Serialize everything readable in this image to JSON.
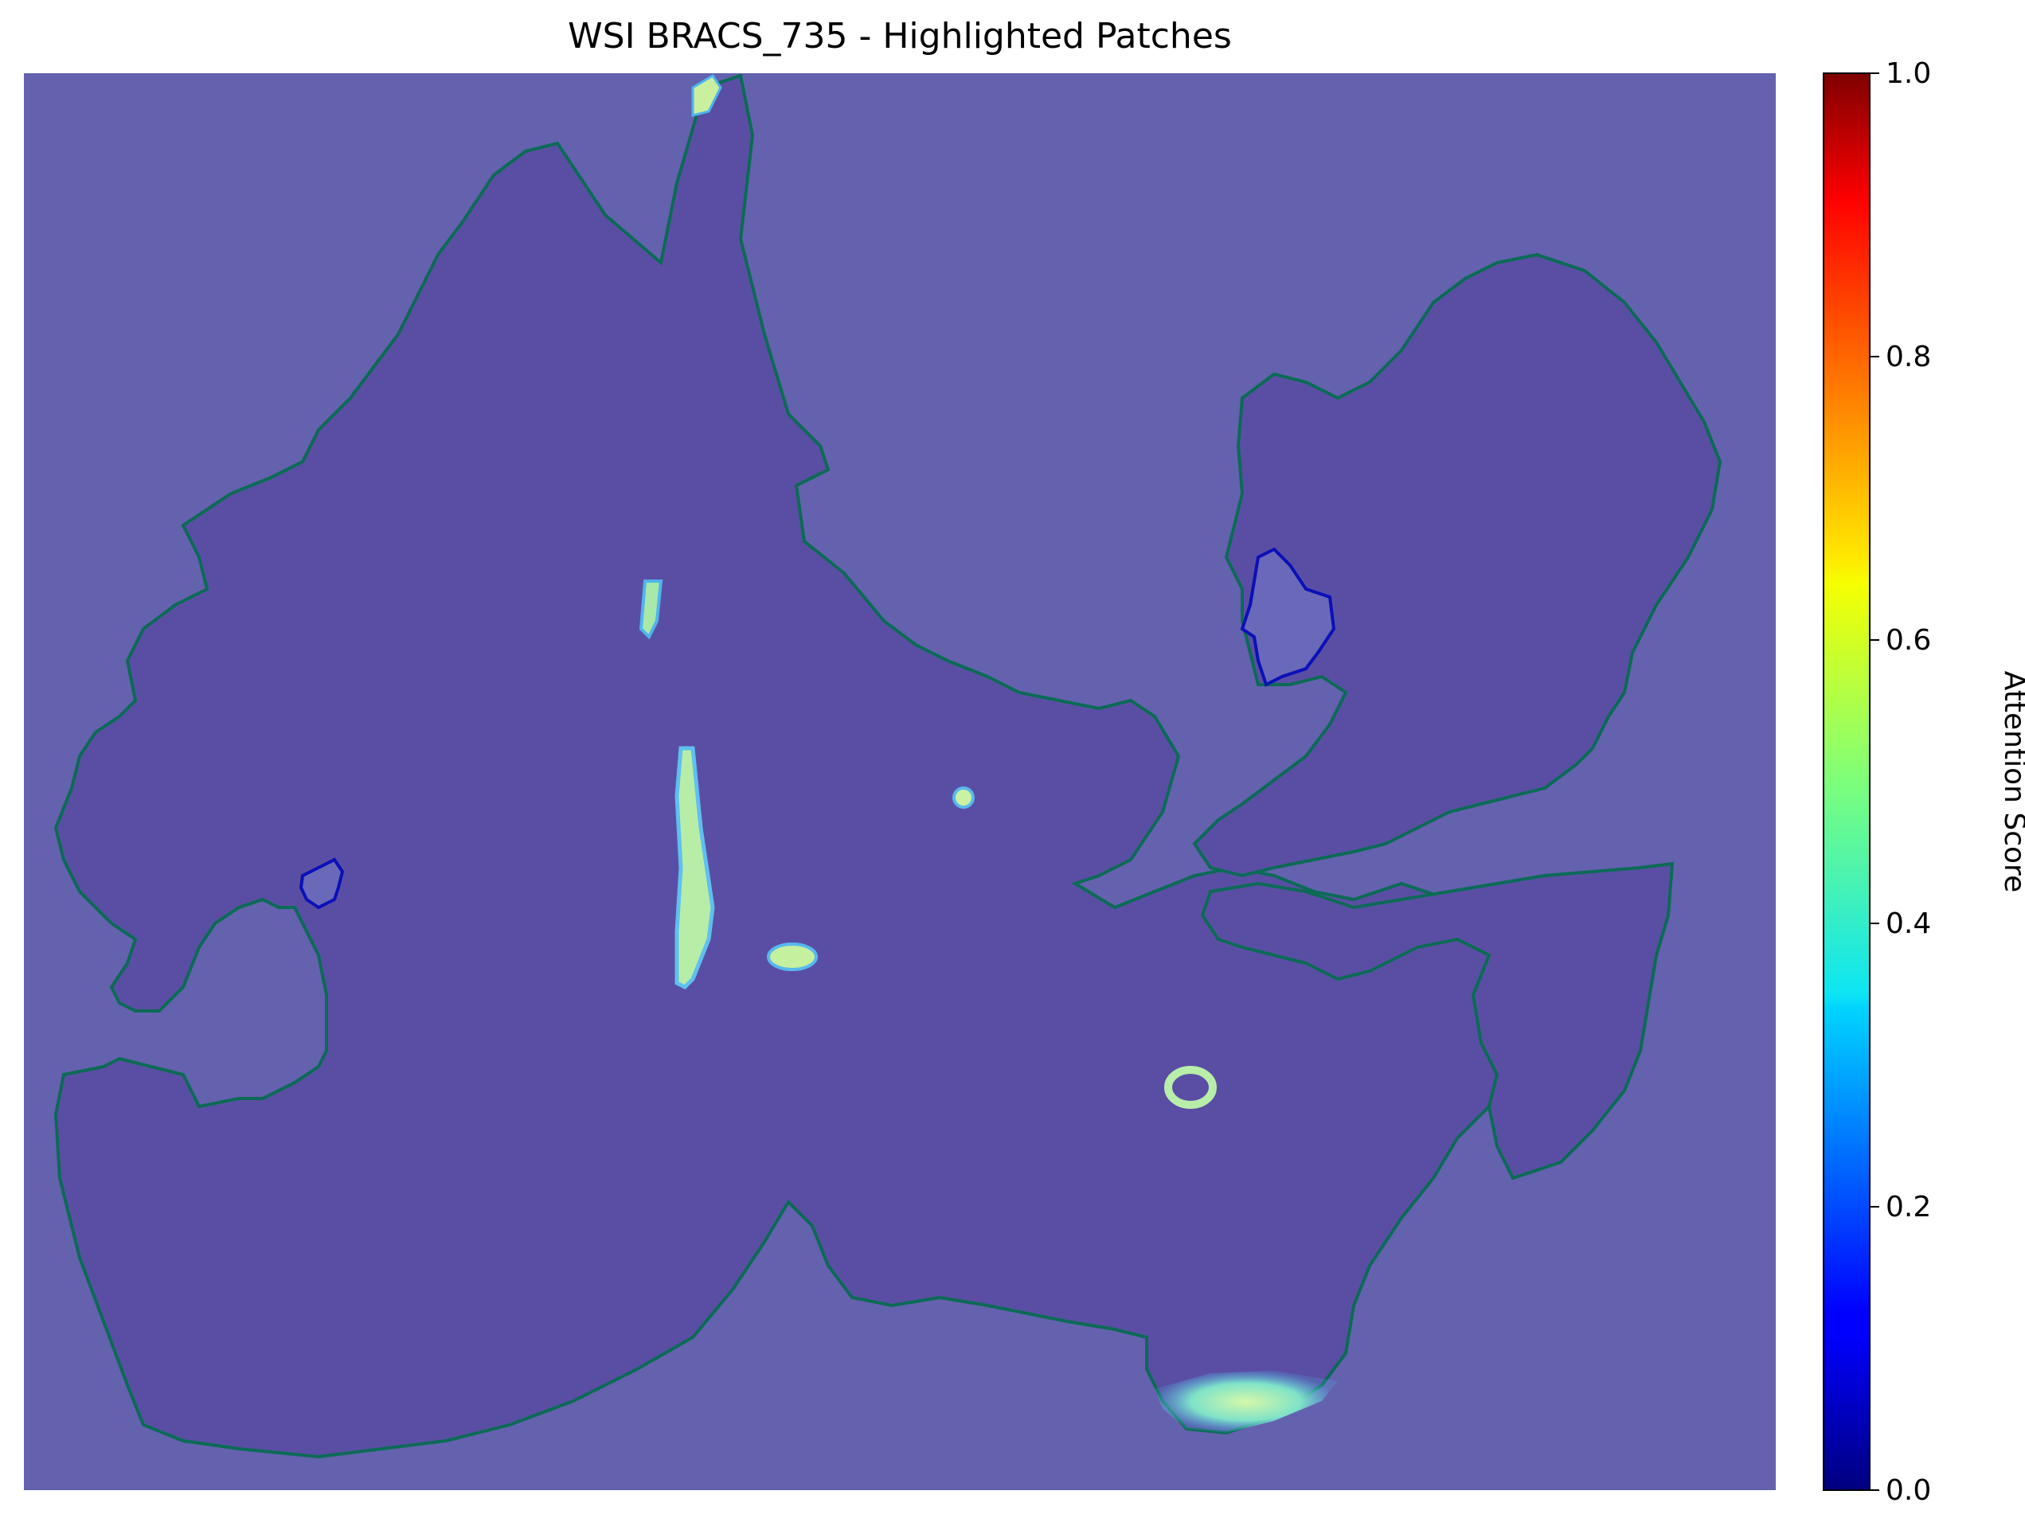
{
  "chart_data": {
    "type": "heatmap",
    "title": "WSI BRACS_735 - Highlighted Patches",
    "colorbar": {
      "label": "Attention Score",
      "range": [
        0.0,
        1.0
      ],
      "colormap": "jet",
      "ticks": [
        0.0,
        0.2,
        0.4,
        0.6,
        0.8,
        1.0
      ],
      "tick_labels": [
        "0.0",
        "0.2",
        "0.4",
        "0.6",
        "0.8",
        "1.0"
      ]
    },
    "axes_visible": false,
    "overlay": {
      "base_color": "#6461ae",
      "tissue_contour_color": "#0b6b55",
      "low_score_contour_color": "#0a10b8",
      "hotspot_colors": [
        "#3a4bff",
        "#3fb9ff",
        "#9fe8a8",
        "#bff0a4"
      ]
    }
  }
}
